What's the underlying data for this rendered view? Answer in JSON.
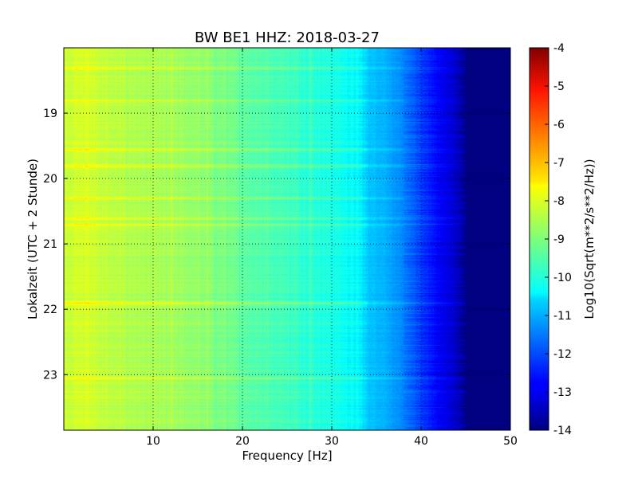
{
  "chart_data": {
    "type": "heatmap",
    "title": "BW BE1 HHZ: 2018-03-27",
    "xlabel": "Frequency [Hz]",
    "ylabel": "Lokalzeit (UTC + 2 Stunde)",
    "xlim": [
      0,
      50
    ],
    "ylim": [
      18.0,
      23.85
    ],
    "y_inverted": true,
    "x_ticks": [
      "10",
      "20",
      "30",
      "40",
      "50"
    ],
    "x_tick_values": [
      10,
      20,
      30,
      40,
      50
    ],
    "y_ticks": [
      "19",
      "20",
      "21",
      "22",
      "23"
    ],
    "y_tick_values": [
      19,
      20,
      21,
      22,
      23
    ],
    "grid": true,
    "colormap": "jet",
    "colorbar": {
      "label": "Log10(Sqrt(m**2/s**2/Hz))",
      "range": [
        -14,
        -4
      ],
      "ticks": [
        "-4",
        "-5",
        "-6",
        "-7",
        "-8",
        "-9",
        "-10",
        "-11",
        "-12",
        "-13",
        "-14"
      ],
      "tick_values": [
        -4,
        -5,
        -6,
        -7,
        -8,
        -9,
        -10,
        -11,
        -12,
        -13,
        -14
      ]
    },
    "spectrum_profile": {
      "frequency_hz": [
        0,
        2,
        5,
        10,
        15,
        20,
        25,
        30,
        33,
        34,
        36,
        38,
        40,
        42,
        44,
        45,
        50
      ],
      "log10_amplitude": [
        -8.3,
        -8.1,
        -8.4,
        -8.6,
        -8.8,
        -9.3,
        -9.6,
        -10.0,
        -10.3,
        -10.8,
        -11.0,
        -11.5,
        -12.2,
        -12.8,
        -13.3,
        -14.0,
        -14.0
      ]
    },
    "bright_lines_local_time": [
      18.3,
      18.8,
      19.55,
      19.8,
      20.3,
      20.6,
      20.7,
      21.9,
      23.05
    ],
    "dominant_frequencies_hz": [
      12,
      16,
      18,
      27.5
    ]
  }
}
